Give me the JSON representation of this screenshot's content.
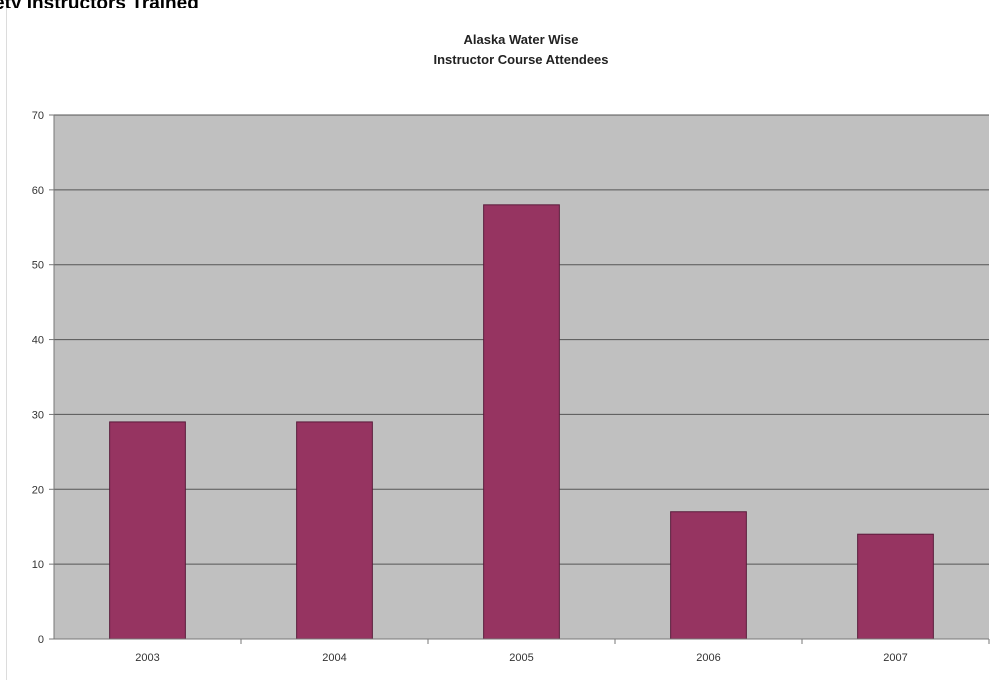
{
  "page": {
    "heading": "ety Instructors Trained"
  },
  "colors": {
    "plot_background": "#c0c0c0",
    "bar_fill": "#963461",
    "bar_stroke": "#5a1a3a",
    "gridline": "#555555",
    "axis": "#777777"
  },
  "chart_data": {
    "type": "bar",
    "title": "Alaska Water Wise",
    "subtitle": "Instructor Course Attendees",
    "categories": [
      "2003",
      "2004",
      "2005",
      "2006",
      "2007"
    ],
    "values": [
      29,
      29,
      58,
      17,
      14
    ],
    "xlabel": "",
    "ylabel": "",
    "ylim": [
      0,
      70
    ],
    "yticks": [
      0,
      10,
      20,
      30,
      40,
      50,
      60,
      70
    ],
    "grid": true,
    "legend": "none"
  }
}
